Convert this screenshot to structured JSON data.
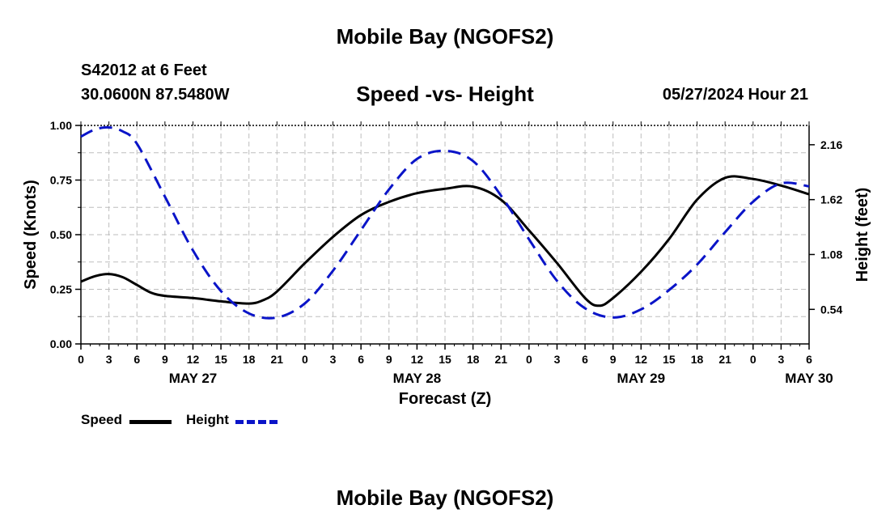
{
  "header": {
    "title": "Mobile Bay (NGOFS2)",
    "station": "S42012 at 6 Feet",
    "coords": "30.0600N  87.5480W",
    "subtitle": "Speed -vs- Height",
    "runtime": "05/27/2024 Hour 21"
  },
  "footer": {
    "title": "Mobile Bay (NGOFS2)"
  },
  "legend": {
    "speed_label": "Speed",
    "height_label": "Height"
  },
  "colors": {
    "speed": "#000000",
    "height": "#0a14c8",
    "grid": "#bdbdbd"
  },
  "chart_data": {
    "type": "line",
    "title": "Speed -vs- Height",
    "xlabel": "Forecast (Z)",
    "ylabel": "Speed (Knots)",
    "y2label": "Height (feet)",
    "x_hours_range": [
      0,
      78
    ],
    "ylim": [
      0,
      1.0
    ],
    "y2lim": [
      0.2,
      2.35
    ],
    "x_tick_labels": [
      "0",
      "3",
      "6",
      "9",
      "12",
      "15",
      "18",
      "21",
      "0",
      "3",
      "6",
      "9",
      "12",
      "15",
      "18",
      "21",
      "0",
      "3",
      "6",
      "9",
      "12",
      "15",
      "18",
      "21",
      "0",
      "3",
      "6"
    ],
    "date_labels": [
      {
        "label": "MAY 27",
        "hour": 12
      },
      {
        "label": "MAY 28",
        "hour": 36
      },
      {
        "label": "MAY 29",
        "hour": 60
      },
      {
        "label": "MAY 30",
        "hour": 78
      }
    ],
    "y_ticks": [
      0.0,
      0.25,
      0.5,
      0.75,
      1.0
    ],
    "y_tick_labels": [
      "0.00",
      "0.25",
      "0.50",
      "0.75",
      "1.00"
    ],
    "y2_ticks": [
      0.54,
      1.08,
      1.62,
      2.16
    ],
    "y2_tick_labels": [
      "0.54",
      "1.08",
      "1.62",
      "2.16"
    ],
    "series": [
      {
        "name": "Speed",
        "axis": "left",
        "style": "solid",
        "hours": [
          0,
          1.5,
          3,
          4.5,
          6,
          7.5,
          9,
          12,
          15,
          18,
          19.5,
          21,
          24,
          27,
          30,
          33,
          36,
          39,
          42,
          45,
          48,
          51,
          54,
          55.5,
          57,
          60,
          63,
          66,
          69,
          72,
          75,
          78
        ],
        "values": [
          0.285,
          0.31,
          0.32,
          0.305,
          0.27,
          0.235,
          0.22,
          0.21,
          0.195,
          0.185,
          0.2,
          0.24,
          0.37,
          0.49,
          0.59,
          0.65,
          0.69,
          0.71,
          0.72,
          0.66,
          0.52,
          0.37,
          0.21,
          0.175,
          0.21,
          0.33,
          0.48,
          0.66,
          0.76,
          0.755,
          0.725,
          0.685
        ]
      },
      {
        "name": "Height",
        "axis": "right",
        "style": "dashed",
        "hours": [
          0,
          1.5,
          3,
          4.5,
          6,
          9,
          12,
          15,
          18,
          21,
          24,
          27,
          30,
          33,
          36,
          39,
          42,
          45,
          48,
          51,
          54,
          57,
          60,
          63,
          66,
          69,
          72,
          75,
          78
        ],
        "values": [
          2.24,
          2.31,
          2.33,
          2.29,
          2.17,
          1.65,
          1.12,
          0.72,
          0.5,
          0.46,
          0.6,
          0.92,
          1.32,
          1.72,
          2.02,
          2.1,
          2.0,
          1.66,
          1.23,
          0.82,
          0.55,
          0.46,
          0.54,
          0.73,
          0.98,
          1.3,
          1.6,
          1.78,
          1.75
        ]
      }
    ]
  }
}
